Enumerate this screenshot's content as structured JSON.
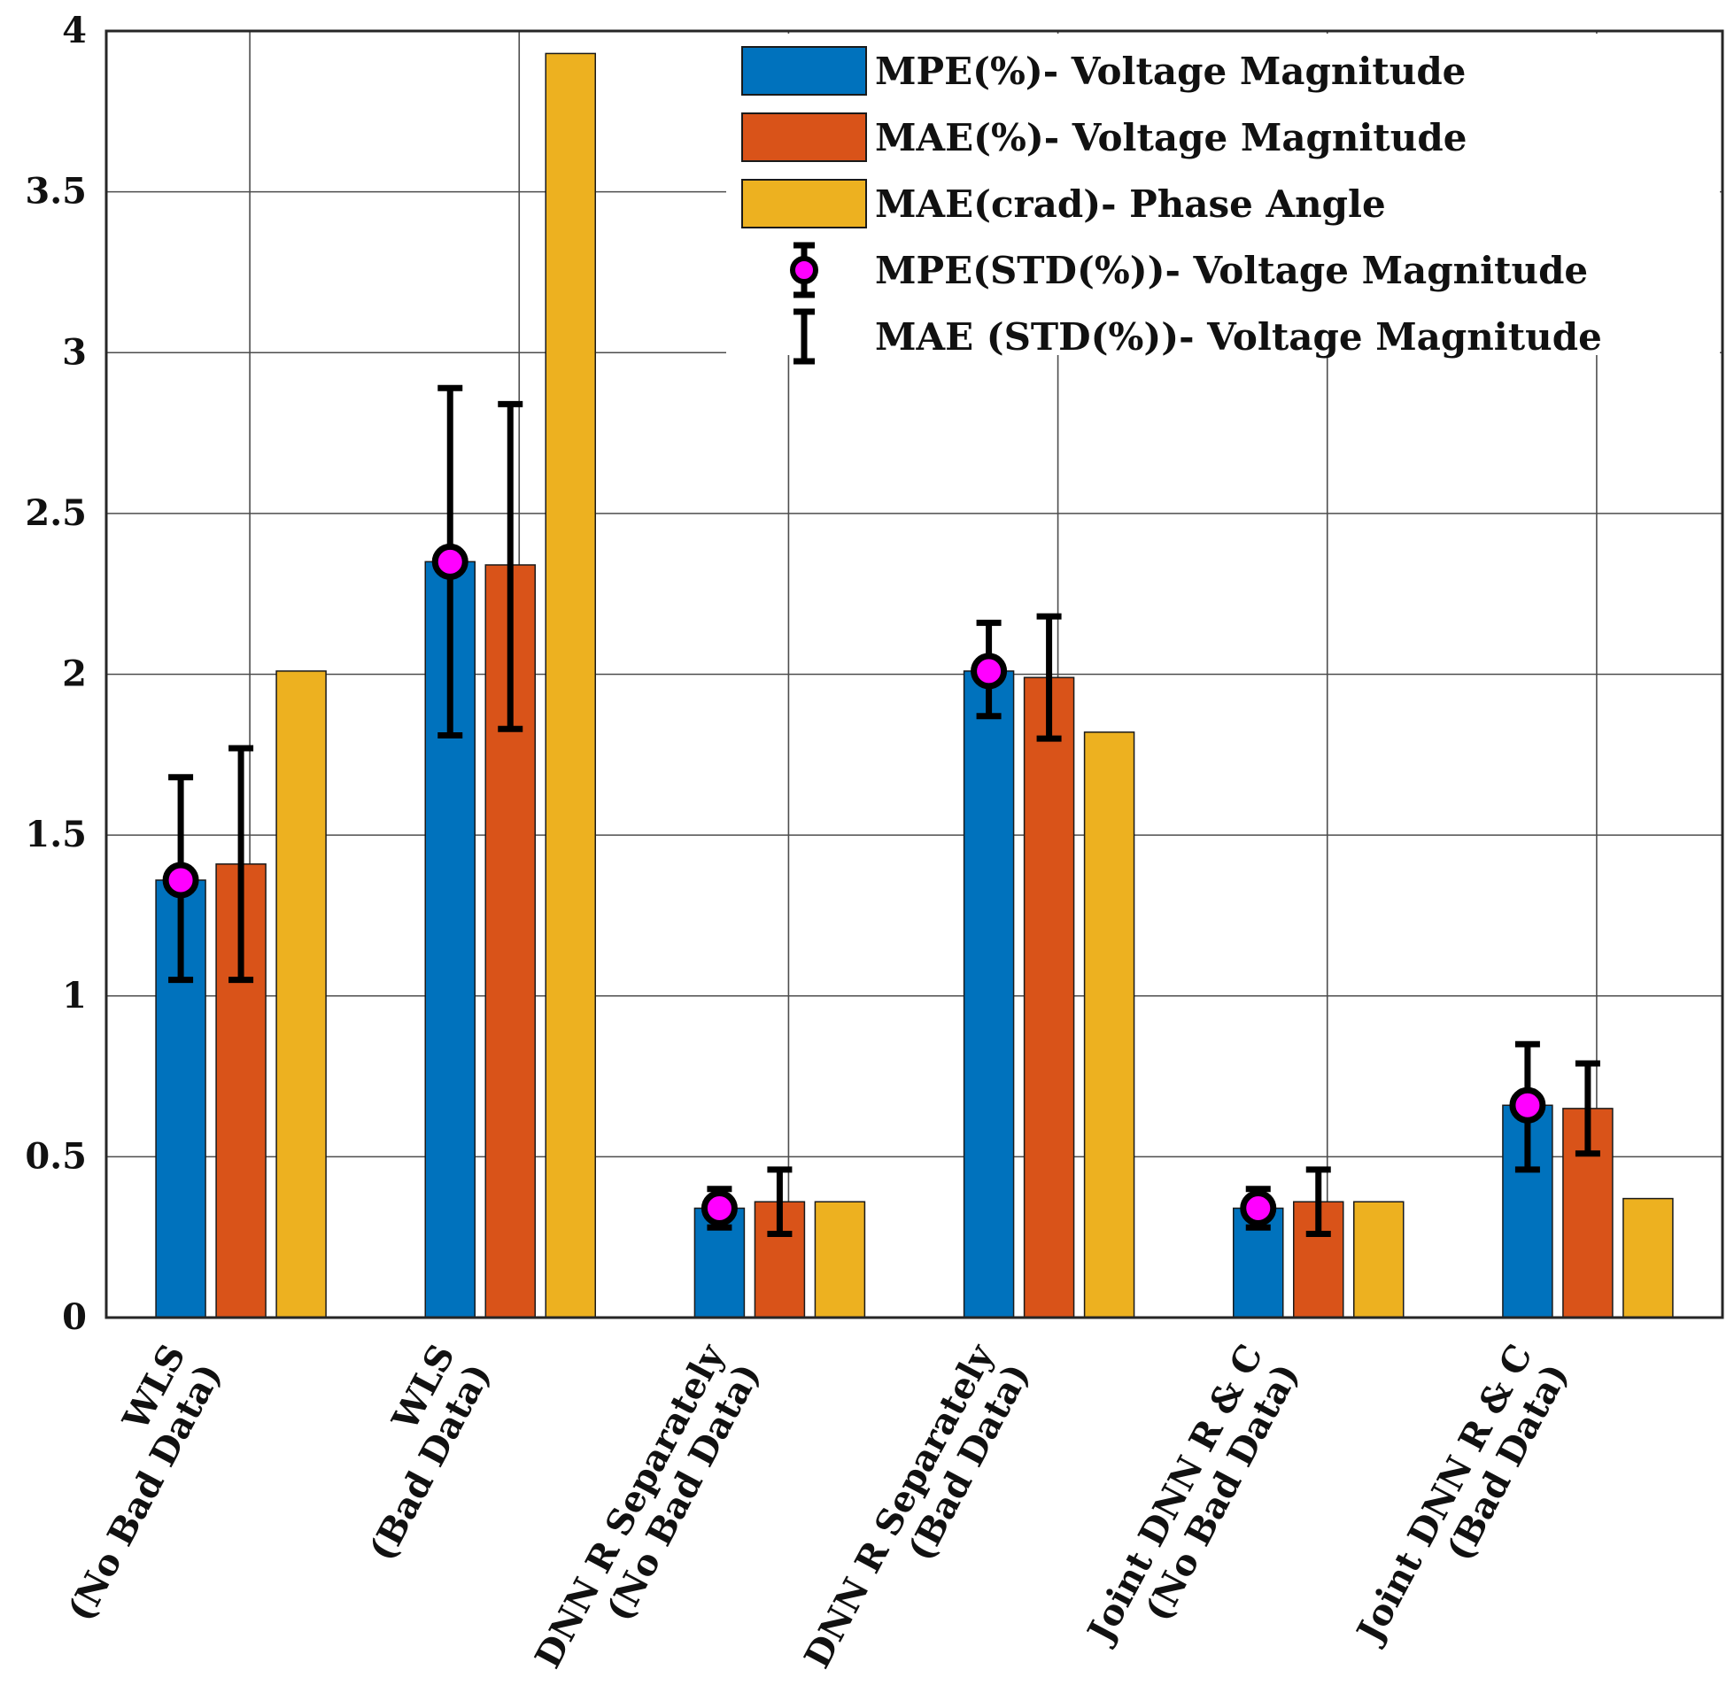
{
  "chart_data": {
    "type": "bar",
    "title": "",
    "xlabel": "",
    "ylabel": "",
    "ylim": [
      0,
      4
    ],
    "yticks": [
      "0",
      "0.5",
      "1",
      "1.5",
      "2",
      "2.5",
      "3",
      "3.5",
      "4"
    ],
    "grid": true,
    "legend_position": "top-right",
    "categories": [
      [
        "WLS",
        "(No Bad Data)"
      ],
      [
        "WLS",
        "(Bad Data)"
      ],
      [
        "DNN R Separately",
        "(No Bad Data)"
      ],
      [
        "DNN R Separately",
        "(Bad Data)"
      ],
      [
        "Joint DNN R & C",
        "(No Bad Data)"
      ],
      [
        "Joint DNN R & C",
        "(Bad Data)"
      ]
    ],
    "series": [
      {
        "name": "MPE(%)- Voltage Magnitude",
        "color": "#0072BD",
        "values": [
          1.36,
          2.35,
          0.34,
          2.01,
          0.34,
          0.66
        ]
      },
      {
        "name": "MAE(%)- Voltage Magnitude",
        "color": "#D95319",
        "values": [
          1.41,
          2.34,
          0.36,
          1.99,
          0.36,
          0.65
        ]
      },
      {
        "name": "MAE(crad)- Phase Angle",
        "color": "#EDB120",
        "values": [
          2.01,
          3.93,
          0.36,
          1.82,
          0.36,
          0.37
        ]
      }
    ],
    "error_bars": [
      {
        "name": "MPE(STD(%))- Voltage Magnitude",
        "series_index": 0,
        "marker": "circle",
        "marker_color": "#FF00FF",
        "center": [
          1.36,
          2.35,
          0.34,
          2.01,
          0.34,
          0.66
        ],
        "low": [
          1.05,
          1.81,
          0.28,
          1.87,
          0.28,
          0.46
        ],
        "high": [
          1.68,
          2.89,
          0.4,
          2.16,
          0.4,
          0.85
        ]
      },
      {
        "name": "MAE (STD(%))- Voltage Magnitude",
        "series_index": 1,
        "marker": "none",
        "center": [
          1.41,
          2.34,
          0.36,
          1.99,
          0.36,
          0.65
        ],
        "low": [
          1.05,
          1.83,
          0.26,
          1.8,
          0.26,
          0.51
        ],
        "high": [
          1.77,
          2.84,
          0.46,
          2.18,
          0.46,
          0.79
        ]
      }
    ]
  }
}
